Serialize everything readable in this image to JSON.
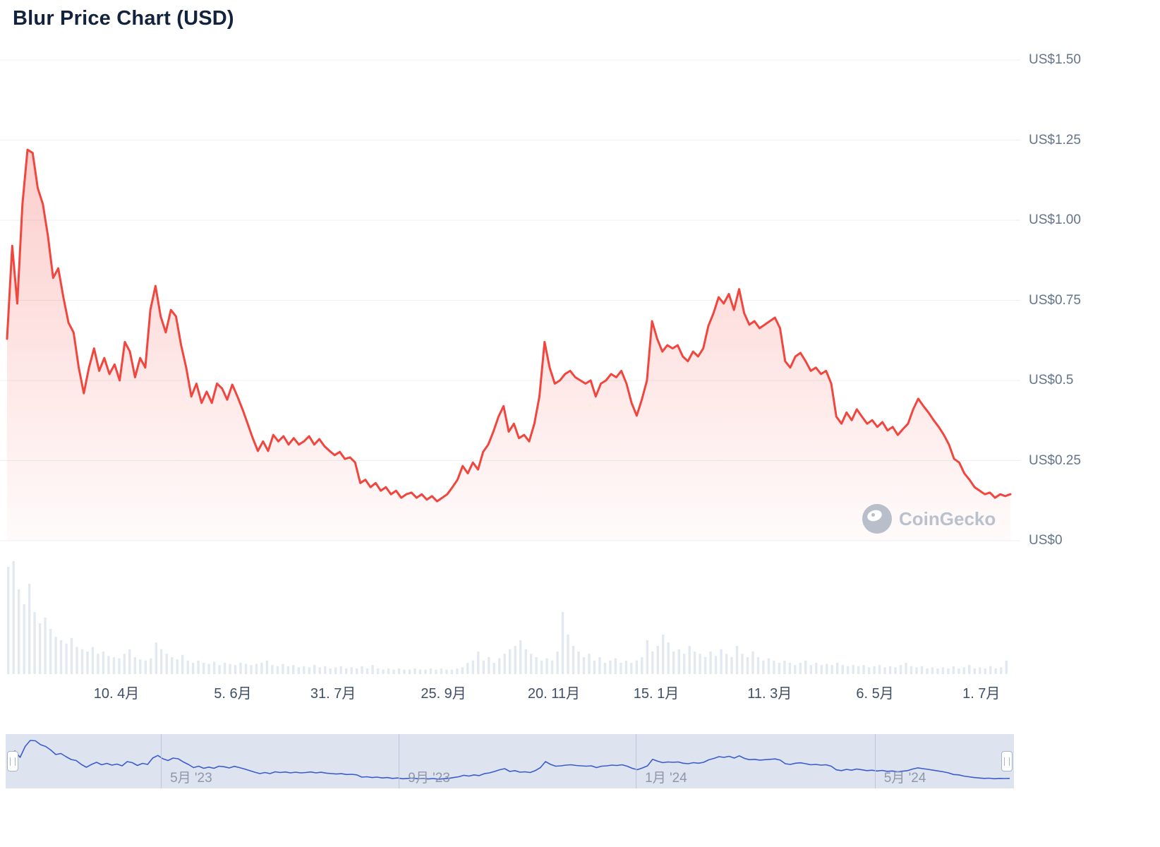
{
  "title": "Blur Price Chart (USD)",
  "watermark": {
    "label": "CoinGecko"
  },
  "chart_data": {
    "type": "line",
    "title": "Blur Price Chart (USD)",
    "currency": "USD",
    "ylim": [
      0,
      1.5
    ],
    "grid": true,
    "y_ticks": [
      1.5,
      1.25,
      1.0,
      0.75,
      0.5,
      0.25,
      0
    ],
    "y_axis_labels": [
      "US$1.50",
      "US$1.25",
      "US$1.00",
      "US$0.75",
      "US$0.5",
      "US$0.25",
      "US$0"
    ],
    "x_tick_labels": [
      "10. 4月",
      "5. 6月",
      "31. 7月",
      "25. 9月",
      "20. 11月",
      "15. 1月",
      "11. 3月",
      "6. 5月",
      "1. 7月"
    ],
    "navigator_labels": [
      "5月 '23",
      "9月 '23",
      "1月 '24",
      "5月 '24"
    ],
    "series": [
      {
        "name": "Blur price (USD)",
        "values": [
          0.63,
          0.92,
          0.74,
          1.05,
          1.22,
          1.21,
          1.1,
          1.05,
          0.95,
          0.82,
          0.85,
          0.76,
          0.68,
          0.65,
          0.54,
          0.46,
          0.54,
          0.6,
          0.53,
          0.57,
          0.52,
          0.55,
          0.5,
          0.62,
          0.59,
          0.51,
          0.57,
          0.54,
          0.72,
          0.795,
          0.7,
          0.65,
          0.72,
          0.7,
          0.61,
          0.54,
          0.45,
          0.49,
          0.43,
          0.465,
          0.43,
          0.49,
          0.475,
          0.44,
          0.487,
          0.45,
          0.41,
          0.365,
          0.32,
          0.28,
          0.31,
          0.28,
          0.33,
          0.31,
          0.326,
          0.3,
          0.32,
          0.3,
          0.31,
          0.326,
          0.3,
          0.317,
          0.295,
          0.28,
          0.267,
          0.277,
          0.255,
          0.26,
          0.244,
          0.18,
          0.19,
          0.167,
          0.18,
          0.156,
          0.167,
          0.145,
          0.156,
          0.134,
          0.145,
          0.15,
          0.134,
          0.145,
          0.128,
          0.139,
          0.123,
          0.134,
          0.145,
          0.167,
          0.19,
          0.233,
          0.21,
          0.244,
          0.222,
          0.277,
          0.3,
          0.34,
          0.387,
          0.42,
          0.34,
          0.365,
          0.32,
          0.33,
          0.31,
          0.365,
          0.45,
          0.62,
          0.54,
          0.49,
          0.5,
          0.52,
          0.53,
          0.51,
          0.5,
          0.49,
          0.5,
          0.45,
          0.49,
          0.5,
          0.52,
          0.51,
          0.53,
          0.49,
          0.43,
          0.39,
          0.44,
          0.5,
          0.685,
          0.63,
          0.59,
          0.61,
          0.6,
          0.61,
          0.575,
          0.56,
          0.59,
          0.575,
          0.6,
          0.67,
          0.71,
          0.76,
          0.74,
          0.77,
          0.72,
          0.785,
          0.71,
          0.674,
          0.685,
          0.663,
          0.674,
          0.685,
          0.696,
          0.663,
          0.56,
          0.54,
          0.575,
          0.586,
          0.56,
          0.53,
          0.54,
          0.52,
          0.53,
          0.49,
          0.387,
          0.365,
          0.4,
          0.376,
          0.41,
          0.387,
          0.365,
          0.376,
          0.355,
          0.37,
          0.344,
          0.355,
          0.33,
          0.348,
          0.365,
          0.41,
          0.443,
          0.42,
          0.4,
          0.376,
          0.355,
          0.33,
          0.3,
          0.255,
          0.244,
          0.21,
          0.19,
          0.167,
          0.156,
          0.145,
          0.15,
          0.134,
          0.145,
          0.139,
          0.145
        ]
      }
    ],
    "volume": [
      0.95,
      1.0,
      0.75,
      0.62,
      0.8,
      0.55,
      0.45,
      0.5,
      0.4,
      0.33,
      0.3,
      0.27,
      0.32,
      0.24,
      0.22,
      0.2,
      0.24,
      0.18,
      0.2,
      0.16,
      0.15,
      0.14,
      0.18,
      0.22,
      0.15,
      0.13,
      0.12,
      0.14,
      0.28,
      0.22,
      0.18,
      0.15,
      0.13,
      0.17,
      0.12,
      0.1,
      0.12,
      0.1,
      0.09,
      0.11,
      0.08,
      0.1,
      0.09,
      0.08,
      0.1,
      0.09,
      0.08,
      0.09,
      0.1,
      0.12,
      0.08,
      0.07,
      0.09,
      0.07,
      0.08,
      0.06,
      0.07,
      0.06,
      0.08,
      0.06,
      0.07,
      0.05,
      0.06,
      0.07,
      0.05,
      0.06,
      0.05,
      0.07,
      0.05,
      0.08,
      0.05,
      0.04,
      0.05,
      0.04,
      0.05,
      0.04,
      0.04,
      0.05,
      0.04,
      0.04,
      0.05,
      0.04,
      0.05,
      0.04,
      0.04,
      0.05,
      0.06,
      0.1,
      0.12,
      0.2,
      0.12,
      0.15,
      0.1,
      0.14,
      0.18,
      0.22,
      0.25,
      0.3,
      0.22,
      0.18,
      0.15,
      0.12,
      0.14,
      0.12,
      0.2,
      0.55,
      0.35,
      0.25,
      0.2,
      0.15,
      0.18,
      0.12,
      0.15,
      0.1,
      0.12,
      0.14,
      0.1,
      0.12,
      0.1,
      0.12,
      0.15,
      0.3,
      0.2,
      0.25,
      0.35,
      0.28,
      0.2,
      0.22,
      0.18,
      0.25,
      0.2,
      0.18,
      0.15,
      0.2,
      0.16,
      0.22,
      0.18,
      0.15,
      0.25,
      0.18,
      0.15,
      0.2,
      0.15,
      0.12,
      0.14,
      0.12,
      0.1,
      0.12,
      0.1,
      0.08,
      0.1,
      0.12,
      0.08,
      0.1,
      0.08,
      0.09,
      0.08,
      0.1,
      0.08,
      0.07,
      0.08,
      0.07,
      0.08,
      0.06,
      0.07,
      0.08,
      0.06,
      0.07,
      0.06,
      0.08,
      0.1,
      0.07,
      0.06,
      0.07,
      0.05,
      0.06,
      0.05,
      0.06,
      0.05,
      0.07,
      0.05,
      0.06,
      0.08,
      0.05,
      0.06,
      0.05,
      0.07,
      0.05,
      0.06,
      0.12
    ],
    "colors": {
      "line": "#f2453d",
      "fill": "#f2453d",
      "grid": "#eceff4",
      "axis_text": "#64748b",
      "x_axis_text": "#3f4f68",
      "volume_bar": "#e3e9f0",
      "nav_bg": "#dde4f0",
      "nav_line": "#3a5ccc",
      "nav_divider": "#bdc7d8",
      "nav_label": "#8e97aa",
      "title": "#12233b",
      "watermark": "#b9c1cd"
    }
  }
}
